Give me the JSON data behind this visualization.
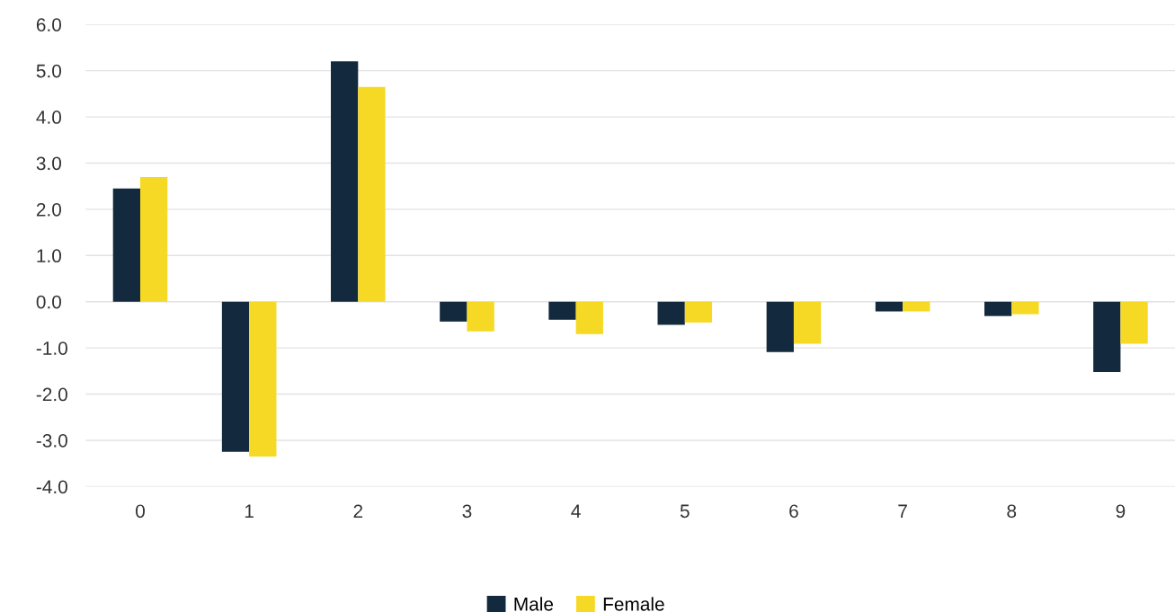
{
  "chart_data": {
    "type": "bar",
    "categories": [
      "0",
      "1",
      "2",
      "3",
      "4",
      "5",
      "6",
      "7",
      "8",
      "9"
    ],
    "series": [
      {
        "name": "Male",
        "color": "#13293d",
        "values": [
          2.45,
          -3.25,
          5.2,
          -0.43,
          -0.39,
          -0.5,
          -1.09,
          -0.21,
          -0.31,
          -1.52
        ]
      },
      {
        "name": "Female",
        "color": "#f5d925",
        "values": [
          2.7,
          -3.35,
          4.65,
          -0.64,
          -0.7,
          -0.45,
          -0.91,
          -0.21,
          -0.27,
          -0.91
        ]
      }
    ],
    "ylim": [
      -4,
      6
    ],
    "yticks": [
      {
        "value": -4,
        "label": "-4.0"
      },
      {
        "value": -3,
        "label": "-3.0"
      },
      {
        "value": -2,
        "label": "-2.0"
      },
      {
        "value": -1,
        "label": "-1.0"
      },
      {
        "value": 0,
        "label": "0.0"
      },
      {
        "value": 1,
        "label": "1.0"
      },
      {
        "value": 2,
        "label": "2.0"
      },
      {
        "value": 3,
        "label": "3.0"
      },
      {
        "value": 4,
        "label": "4.0"
      },
      {
        "value": 5,
        "label": "5.0"
      },
      {
        "value": 6,
        "label": "6.0"
      }
    ],
    "grid": "y",
    "legend": "bottom"
  }
}
